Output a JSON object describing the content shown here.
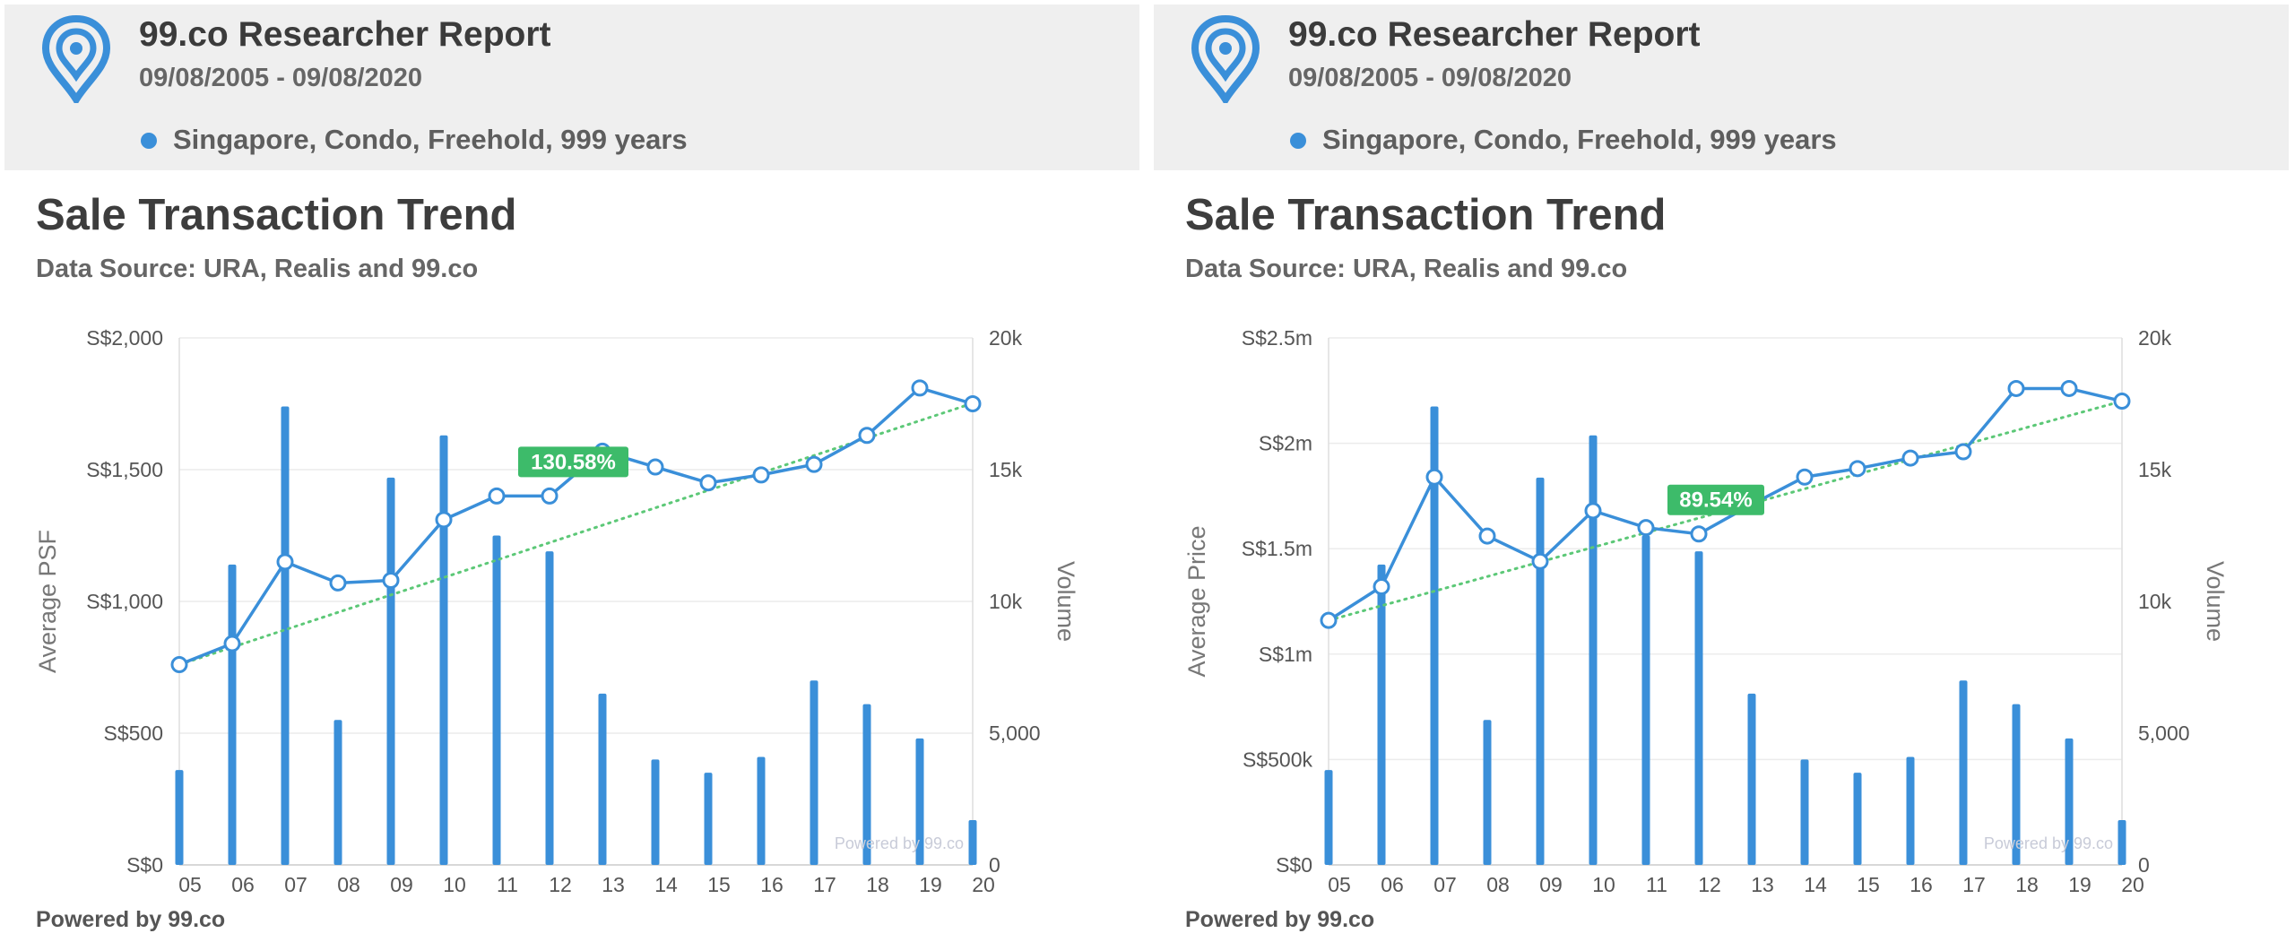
{
  "panels": [
    {
      "report_title": "99.co Researcher Report",
      "date_range": "09/08/2005 - 09/08/2020",
      "filter_label": "Singapore, Condo, Freehold, 999 years",
      "heading": "Sale Transaction Trend",
      "data_source": "Data Source: URA, Realis and 99.co",
      "powered_by": "Powered by 99.co",
      "chart_data": {
        "type": "bar",
        "categories": [
          "05",
          "06",
          "07",
          "08",
          "09",
          "10",
          "11",
          "12",
          "13",
          "14",
          "15",
          "16",
          "17",
          "18",
          "19",
          "20"
        ],
        "series": [
          {
            "axis": "right",
            "type": "bar",
            "color": "#3a8fd9",
            "values": [
              3600,
              11400,
              17400,
              5500,
              14700,
              16300,
              12500,
              11900,
              6500,
              4000,
              3500,
              4100,
              7000,
              6100,
              4800,
              1700
            ]
          },
          {
            "axis": "left",
            "type": "line",
            "color": "#3a8fd9",
            "values": [
              760,
              840,
              1150,
              1070,
              1080,
              1310,
              1400,
              1400,
              1570,
              1510,
              1450,
              1480,
              1520,
              1630,
              1810,
              1750
            ]
          }
        ],
        "trendline": {
          "from": 760,
          "to": 1752,
          "color": "#5cc877"
        },
        "trend_label": "130.58%",
        "trend_label_at_category": "12",
        "y_left_ticks": [
          "S$0",
          "S$500",
          "S$1,000",
          "S$1,500",
          "S$2,000"
        ],
        "y_left_max": 2000,
        "y_right_ticks": [
          "0",
          "5,000",
          "10k",
          "15k",
          "20k"
        ],
        "y_right_max": 20000,
        "ylabel_left": "Average PSF",
        "ylabel_right": "Volume",
        "watermark": "Powered by 99.co",
        "grid": true
      }
    },
    {
      "report_title": "99.co Researcher Report",
      "date_range": "09/08/2005 - 09/08/2020",
      "filter_label": "Singapore, Condo, Freehold, 999 years",
      "heading": "Sale Transaction Trend",
      "data_source": "Data Source: URA, Realis and 99.co",
      "powered_by": "Powered by 99.co",
      "chart_data": {
        "type": "bar",
        "categories": [
          "05",
          "06",
          "07",
          "08",
          "09",
          "10",
          "11",
          "12",
          "13",
          "14",
          "15",
          "16",
          "17",
          "18",
          "19",
          "20"
        ],
        "series": [
          {
            "axis": "right",
            "type": "bar",
            "color": "#3a8fd9",
            "values": [
              3600,
              11400,
              17400,
              5500,
              14700,
              16300,
              12500,
              11900,
              6500,
              4000,
              3500,
              4100,
              7000,
              6100,
              4800,
              1700
            ]
          },
          {
            "axis": "left",
            "type": "line",
            "color": "#3a8fd9",
            "values": [
              1160000,
              1320000,
              1840000,
              1560000,
              1440000,
              1680000,
              1600000,
              1570000,
              1710000,
              1840000,
              1880000,
              1930000,
              1960000,
              2260000,
              2260000,
              2200000
            ]
          }
        ],
        "trendline": {
          "from": 1160000,
          "to": 2200000,
          "color": "#5cc877"
        },
        "trend_label": "89.54%",
        "trend_label_at_category": "12",
        "y_left_ticks": [
          "S$0",
          "S$500k",
          "S$1m",
          "S$1.5m",
          "S$2m",
          "S$2.5m"
        ],
        "y_left_max": 2500000,
        "y_right_ticks": [
          "0",
          "5,000",
          "10k",
          "15k",
          "20k"
        ],
        "y_right_max": 20000,
        "ylabel_left": "Average Price",
        "ylabel_right": "Volume",
        "watermark": "Powered by 99.co",
        "grid": true
      }
    }
  ]
}
